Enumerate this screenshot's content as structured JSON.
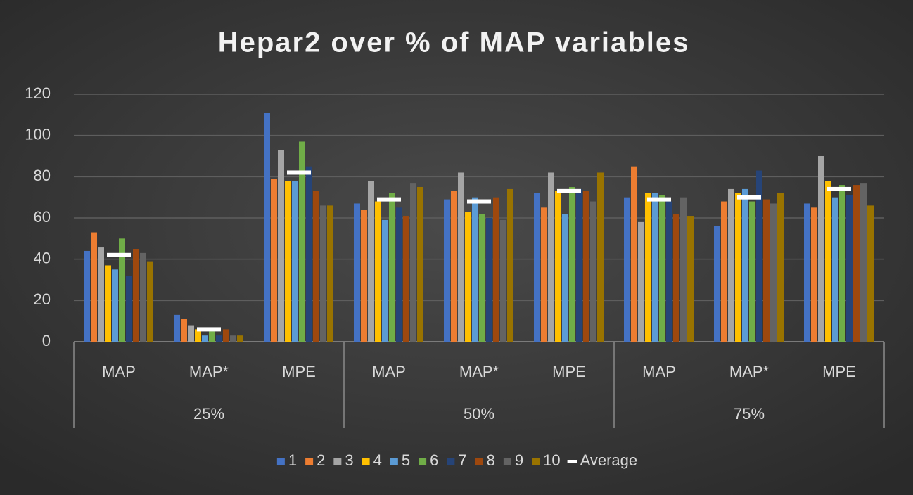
{
  "chart_data": {
    "type": "bar",
    "title": "Hepar2 over % of MAP variables",
    "categories": [
      "MAP",
      "MAP*",
      "MPE",
      "MAP",
      "MAP*",
      "MPE",
      "MAP",
      "MAP*",
      "MPE"
    ],
    "groups": [
      "25%",
      "50%",
      "75%"
    ],
    "ylim": [
      0,
      120
    ],
    "yticks": [
      0,
      20,
      40,
      60,
      80,
      100,
      120
    ],
    "grid": true,
    "series": [
      {
        "name": "1",
        "color": "#4472c4",
        "values": [
          44,
          13,
          111,
          67,
          69,
          72,
          70,
          56,
          67
        ]
      },
      {
        "name": "2",
        "color": "#ed7d31",
        "values": [
          53,
          11,
          79,
          64,
          73,
          65,
          85,
          68,
          65
        ]
      },
      {
        "name": "3",
        "color": "#a5a5a5",
        "values": [
          46,
          8,
          93,
          78,
          82,
          82,
          58,
          74,
          90
        ]
      },
      {
        "name": "4",
        "color": "#ffc000",
        "values": [
          37,
          6,
          78,
          68,
          63,
          73,
          72,
          72,
          78
        ]
      },
      {
        "name": "5",
        "color": "#5b9bd5",
        "values": [
          35,
          3,
          78,
          59,
          70,
          62,
          72,
          74,
          70
        ]
      },
      {
        "name": "6",
        "color": "#70ad47",
        "values": [
          50,
          5,
          97,
          72,
          62,
          75,
          71,
          68,
          76
        ]
      },
      {
        "name": "7",
        "color": "#264478",
        "values": [
          32,
          3,
          85,
          65,
          60,
          74,
          68,
          83,
          71
        ]
      },
      {
        "name": "8",
        "color": "#9e480e",
        "values": [
          45,
          6,
          73,
          61,
          70,
          73,
          62,
          69,
          76
        ]
      },
      {
        "name": "9",
        "color": "#636363",
        "values": [
          43,
          3,
          66,
          77,
          59,
          68,
          70,
          67,
          77
        ]
      },
      {
        "name": "10",
        "color": "#997300",
        "values": [
          39,
          3,
          66,
          75,
          74,
          82,
          61,
          72,
          66
        ]
      },
      {
        "name": "Average",
        "color": "#ffffff",
        "style": "dash",
        "values": [
          42,
          6,
          82,
          69,
          68,
          73,
          69,
          70,
          74
        ]
      }
    ]
  }
}
